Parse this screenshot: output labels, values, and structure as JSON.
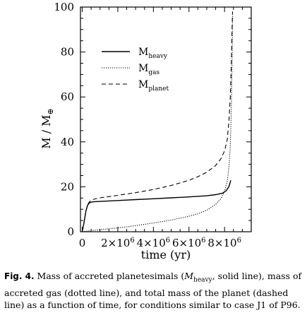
{
  "chart_data": {
    "type": "line",
    "xlabel": "time (yr)",
    "ylabel": "M / M",
    "ylabel_subscript": "⊕",
    "xlim": [
      -100000,
      9500000
    ],
    "ylim": [
      0,
      100
    ],
    "x_ticks": [
      {
        "value": 0,
        "mantissa": "0",
        "exp": ""
      },
      {
        "value": 2000000,
        "mantissa": "2×10",
        "exp": "6"
      },
      {
        "value": 4000000,
        "mantissa": "4×10",
        "exp": "6"
      },
      {
        "value": 6000000,
        "mantissa": "6×10",
        "exp": "6"
      },
      {
        "value": 8000000,
        "mantissa": "8×10",
        "exp": "6"
      }
    ],
    "y_ticks": [
      0,
      20,
      40,
      60,
      80,
      100
    ],
    "grid": false,
    "legend_position": "upper-left",
    "series": [
      {
        "name": "M",
        "subscript": "heavy",
        "style": "solid",
        "x": [
          0,
          100000,
          200000,
          300000,
          400000,
          500000,
          700000,
          1000000,
          2000000,
          3000000,
          4000000,
          5000000,
          6000000,
          7000000,
          7500000,
          7900000,
          8100000,
          8250000,
          8350000
        ],
        "y": [
          0,
          4,
          9,
          11.8,
          12.8,
          13.2,
          13.4,
          13.5,
          13.9,
          14.3,
          14.7,
          15.1,
          15.5,
          16,
          16.5,
          17.2,
          18.3,
          20.2,
          22.9
        ]
      },
      {
        "name": "M",
        "subscript": "gas",
        "style": "dotted",
        "x": [
          0,
          500000,
          1000000,
          2000000,
          3000000,
          4000000,
          5000000,
          6000000,
          6500000,
          7000000,
          7500000,
          7800000,
          8000000,
          8150000,
          8250000,
          8320000,
          8380000,
          8420000,
          8450000
        ],
        "y": [
          0,
          0.5,
          0.9,
          1.7,
          2.7,
          3.9,
          5.2,
          6.9,
          8,
          9.6,
          12.2,
          14.8,
          18,
          22.5,
          29,
          38,
          55,
          75,
          96
        ]
      },
      {
        "name": "M",
        "subscript": "planet",
        "style": "dashed",
        "x": [
          0,
          100000,
          200000,
          300000,
          400000,
          500000,
          700000,
          1000000,
          2000000,
          3000000,
          4000000,
          5000000,
          6000000,
          6500000,
          7000000,
          7500000,
          7800000,
          8000000,
          8150000,
          8250000,
          8320000,
          8380000,
          8420000,
          8450000
        ],
        "y": [
          0,
          4,
          9,
          12,
          13.3,
          14,
          14.6,
          15.1,
          16.2,
          17.4,
          18.8,
          20.6,
          22.9,
          24.5,
          26.5,
          29.5,
          32.5,
          36,
          41,
          50,
          60,
          75,
          90,
          98
        ]
      }
    ]
  },
  "caption": {
    "label": "Fig. 4.",
    "text_1": " Mass of accreted planetesimals (",
    "italic_var": "M",
    "italic_sub": "heavy",
    "text_2": ", solid line), mass of accreted gas (dotted line), and total mass of the planet (dashed line) as a function of time, for conditions similar to case J1 of P96."
  }
}
